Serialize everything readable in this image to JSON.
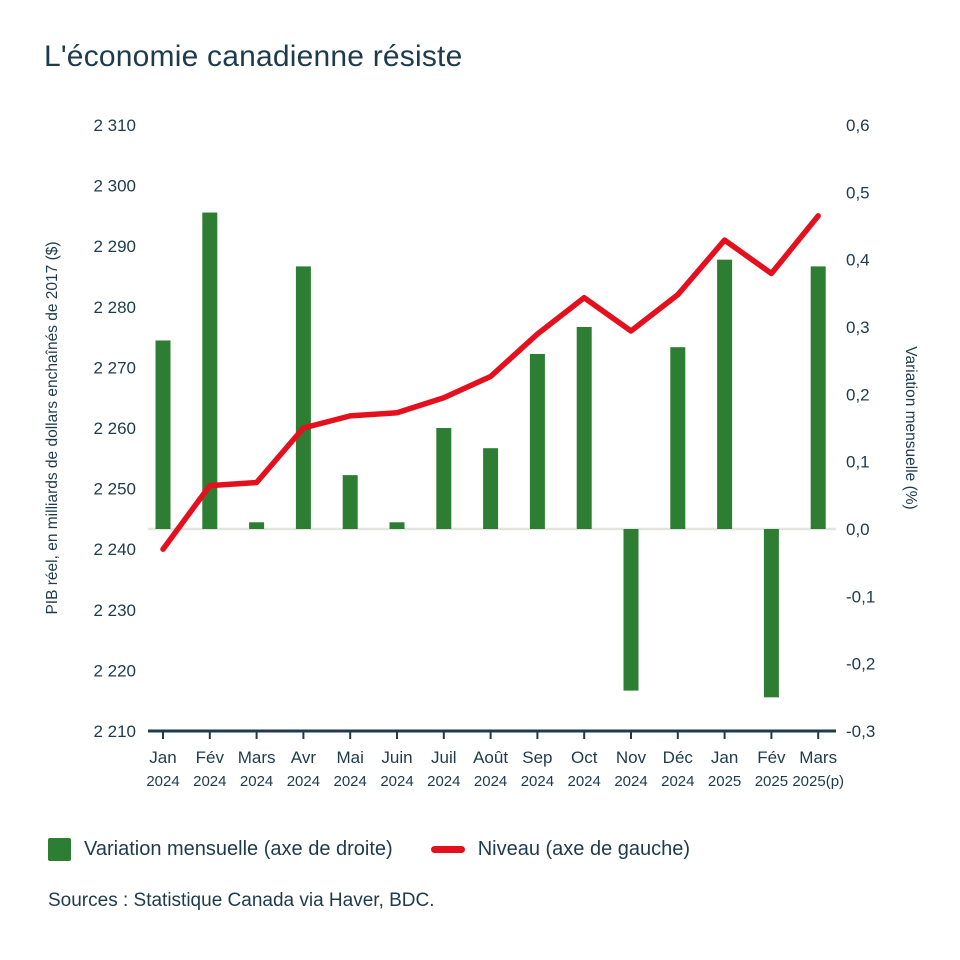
{
  "title": "L'économie canadienne résiste",
  "colors": {
    "text": "#1d3b4d",
    "bar": "#2d7d32",
    "line": "#e4101e",
    "zero_line": "#e5e4e0",
    "axis": "#1d3b4d"
  },
  "chart_data": {
    "type": "bar+line combo, dual axis",
    "categories": [
      {
        "label": "Jan",
        "sublabel": "2024"
      },
      {
        "label": "Fév",
        "sublabel": "2024"
      },
      {
        "label": "Mars",
        "sublabel": "2024"
      },
      {
        "label": "Avr",
        "sublabel": "2024"
      },
      {
        "label": "Mai",
        "sublabel": "2024"
      },
      {
        "label": "Juin",
        "sublabel": "2024"
      },
      {
        "label": "Juil",
        "sublabel": "2024"
      },
      {
        "label": "Août",
        "sublabel": "2024"
      },
      {
        "label": "Sep",
        "sublabel": "2024"
      },
      {
        "label": "Oct",
        "sublabel": "2024"
      },
      {
        "label": "Nov",
        "sublabel": "2024"
      },
      {
        "label": "Déc",
        "sublabel": "2024"
      },
      {
        "label": "Jan",
        "sublabel": "2025"
      },
      {
        "label": "Fév",
        "sublabel": "2025"
      },
      {
        "label": "Mars",
        "sublabel": "2025(p)"
      }
    ],
    "series": [
      {
        "name": "Variation mensuelle (axe de droite)",
        "type": "bar",
        "axis": "right",
        "values": [
          0.28,
          0.47,
          0.01,
          0.39,
          0.08,
          0.01,
          0.15,
          0.12,
          0.26,
          0.3,
          -0.24,
          0.27,
          0.4,
          -0.25,
          0.39
        ]
      },
      {
        "name": "Niveau (axe de gauche)",
        "type": "line",
        "axis": "left",
        "values": [
          2240,
          2250.5,
          2251,
          2260,
          2262,
          2262.5,
          2265,
          2268.5,
          2275.5,
          2281.5,
          2276,
          2282,
          2291,
          2285.5,
          2295
        ]
      }
    ],
    "left_axis": {
      "title": "PIB réel, en milliards de dollars enchaînés de 2017 ($)",
      "min": 2210,
      "max": 2310,
      "tick_step": 10,
      "tick_labels": [
        "2 310",
        "2 300",
        "2 290",
        "2 280",
        "2 270",
        "2 260",
        "2 250",
        "2 240",
        "2 230",
        "2 220",
        "2 210"
      ]
    },
    "right_axis": {
      "title": "Variation mensuelle (%)",
      "min": -0.3,
      "max": 0.6,
      "tick_step": 0.1,
      "tick_labels": [
        "0,6",
        "0,5",
        "0,4",
        "0,3",
        "0,2",
        "0,1",
        "0,0",
        "-0,1",
        "-0,2",
        "-0,3"
      ]
    },
    "grid": "zero line only",
    "legend_position": "bottom-left"
  },
  "legend": {
    "items": [
      {
        "label": "Variation mensuelle (axe de droite)",
        "swatch": "bar"
      },
      {
        "label": "Niveau (axe de gauche)",
        "swatch": "line"
      }
    ]
  },
  "source": "Sources : Statistique Canada via Haver, BDC."
}
